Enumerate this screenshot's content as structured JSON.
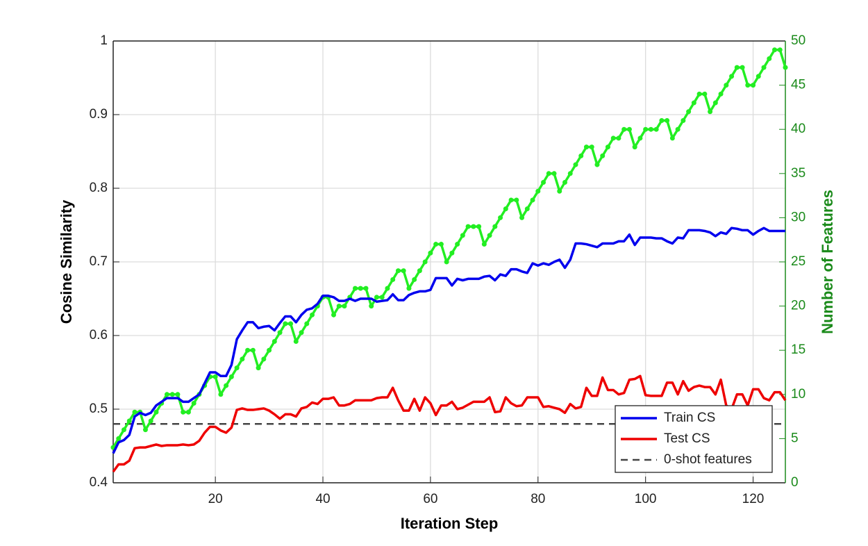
{
  "chart_data": {
    "type": "line",
    "x_label": "Iteration Step",
    "y_label": "Cosine Similarity",
    "y2_label": "Number of Features",
    "x": [
      1,
      2,
      3,
      4,
      5,
      6,
      7,
      8,
      9,
      10,
      11,
      12,
      13,
      14,
      15,
      16,
      17,
      18,
      19,
      20,
      21,
      22,
      23,
      24,
      25,
      26,
      27,
      28,
      29,
      30,
      31,
      32,
      33,
      34,
      35,
      36,
      37,
      38,
      39,
      40,
      41,
      42,
      43,
      44,
      45,
      46,
      47,
      48,
      49,
      50,
      51,
      52,
      53,
      54,
      55,
      56,
      57,
      58,
      59,
      60,
      61,
      62,
      63,
      64,
      65,
      66,
      67,
      68,
      69,
      70,
      71,
      72,
      73,
      74,
      75,
      76,
      77,
      78,
      79,
      80,
      81,
      82,
      83,
      84,
      85,
      86,
      87,
      88,
      89,
      90,
      91,
      92,
      93,
      94,
      95,
      96,
      97,
      98,
      99,
      100,
      101,
      102,
      103,
      104,
      105,
      106,
      107,
      108,
      109,
      110,
      111,
      112,
      113,
      114,
      115,
      116,
      117,
      118,
      119,
      120,
      121,
      122,
      123,
      124,
      125,
      126
    ],
    "xlim": [
      1,
      126
    ],
    "xticks": [
      20,
      40,
      60,
      80,
      100,
      120
    ],
    "ylim": [
      0.4,
      1
    ],
    "yticks": [
      0.4,
      0.5,
      0.6,
      0.7,
      0.8,
      0.9,
      1
    ],
    "y2lim": [
      0,
      50
    ],
    "y2ticks": [
      0,
      5,
      10,
      15,
      20,
      25,
      30,
      35,
      40,
      45,
      50
    ],
    "y2_color": "#1a8a1a",
    "grid": true,
    "legend": "lower right",
    "series": [
      {
        "name": "Train CS",
        "color": "#0000ee",
        "values": [
          0.44,
          0.455,
          0.458,
          0.465,
          0.49,
          0.495,
          0.492,
          0.495,
          0.505,
          0.51,
          0.515,
          0.515,
          0.515,
          0.51,
          0.51,
          0.515,
          0.52,
          0.535,
          0.55,
          0.55,
          0.545,
          0.545,
          0.56,
          0.595,
          0.607,
          0.618,
          0.618,
          0.61,
          0.612,
          0.613,
          0.607,
          0.617,
          0.626,
          0.626,
          0.618,
          0.628,
          0.635,
          0.637,
          0.643,
          0.654,
          0.654,
          0.652,
          0.647,
          0.647,
          0.65,
          0.647,
          0.65,
          0.65,
          0.65,
          0.646,
          0.647,
          0.648,
          0.656,
          0.648,
          0.648,
          0.655,
          0.658,
          0.66,
          0.66,
          0.662,
          0.678,
          0.678,
          0.678,
          0.668,
          0.677,
          0.675,
          0.677,
          0.677,
          0.677,
          0.68,
          0.681,
          0.675,
          0.683,
          0.681,
          0.69,
          0.69,
          0.687,
          0.685,
          0.698,
          0.695,
          0.698,
          0.696,
          0.7,
          0.703,
          0.692,
          0.703,
          0.725,
          0.725,
          0.724,
          0.722,
          0.72,
          0.725,
          0.725,
          0.725,
          0.728,
          0.728,
          0.737,
          0.723,
          0.733,
          0.733,
          0.733,
          0.732,
          0.732,
          0.728,
          0.725,
          0.733,
          0.732,
          0.743,
          0.743,
          0.743,
          0.742,
          0.74,
          0.735,
          0.74,
          0.738,
          0.746,
          0.745,
          0.743,
          0.743,
          0.737,
          0.742,
          0.746,
          0.742,
          0.742,
          0.742,
          0.742
        ]
      },
      {
        "name": "Test CS",
        "color": "#ee0000",
        "values": [
          0.415,
          0.425,
          0.425,
          0.43,
          0.447,
          0.448,
          0.448,
          0.45,
          0.452,
          0.45,
          0.451,
          0.451,
          0.451,
          0.452,
          0.451,
          0.452,
          0.457,
          0.468,
          0.476,
          0.476,
          0.471,
          0.468,
          0.475,
          0.499,
          0.501,
          0.499,
          0.499,
          0.5,
          0.501,
          0.498,
          0.493,
          0.487,
          0.493,
          0.493,
          0.49,
          0.501,
          0.503,
          0.509,
          0.507,
          0.514,
          0.514,
          0.516,
          0.505,
          0.505,
          0.507,
          0.512,
          0.512,
          0.512,
          0.512,
          0.515,
          0.516,
          0.516,
          0.529,
          0.512,
          0.498,
          0.498,
          0.514,
          0.498,
          0.516,
          0.508,
          0.492,
          0.505,
          0.505,
          0.51,
          0.5,
          0.502,
          0.506,
          0.51,
          0.51,
          0.51,
          0.516,
          0.496,
          0.497,
          0.516,
          0.508,
          0.504,
          0.505,
          0.516,
          0.516,
          0.516,
          0.503,
          0.504,
          0.502,
          0.5,
          0.495,
          0.507,
          0.501,
          0.503,
          0.529,
          0.518,
          0.518,
          0.543,
          0.526,
          0.526,
          0.52,
          0.522,
          0.54,
          0.541,
          0.545,
          0.519,
          0.518,
          0.518,
          0.518,
          0.536,
          0.536,
          0.52,
          0.538,
          0.525,
          0.53,
          0.532,
          0.53,
          0.53,
          0.52,
          0.54,
          0.505,
          0.5,
          0.52,
          0.52,
          0.505,
          0.527,
          0.527,
          0.515,
          0.512,
          0.523,
          0.523,
          0.512
        ]
      },
      {
        "name": "Number of Features",
        "color": "#22ee22",
        "axis": "y2",
        "markers": true,
        "values": [
          4,
          5,
          6,
          7,
          8,
          8,
          6,
          7,
          8,
          9,
          10,
          10,
          10,
          8,
          8,
          9,
          10,
          11,
          12,
          12,
          10,
          11,
          12,
          13,
          14,
          15,
          15,
          13,
          14,
          15,
          16,
          17,
          18,
          18,
          16,
          17,
          18,
          19,
          20,
          21,
          21,
          19,
          20,
          20,
          21,
          22,
          22,
          22,
          20,
          21,
          21,
          22,
          23,
          24,
          24,
          22,
          23,
          24,
          25,
          26,
          27,
          27,
          25,
          26,
          27,
          28,
          29,
          29,
          29,
          27,
          28,
          29,
          30,
          31,
          32,
          32,
          30,
          31,
          32,
          33,
          34,
          35,
          35,
          33,
          34,
          35,
          36,
          37,
          38,
          38,
          36,
          37,
          38,
          39,
          39,
          40,
          40,
          38,
          39,
          40,
          40,
          40,
          41,
          41,
          39,
          40,
          41,
          42,
          43,
          44,
          44,
          42,
          43,
          44,
          45,
          46,
          47,
          47,
          45,
          45,
          46,
          47,
          48,
          49,
          49,
          47
        ]
      }
    ],
    "reference_lines": [
      {
        "name": "0-shot features",
        "value": 0.48,
        "color": "#444444"
      }
    ]
  }
}
